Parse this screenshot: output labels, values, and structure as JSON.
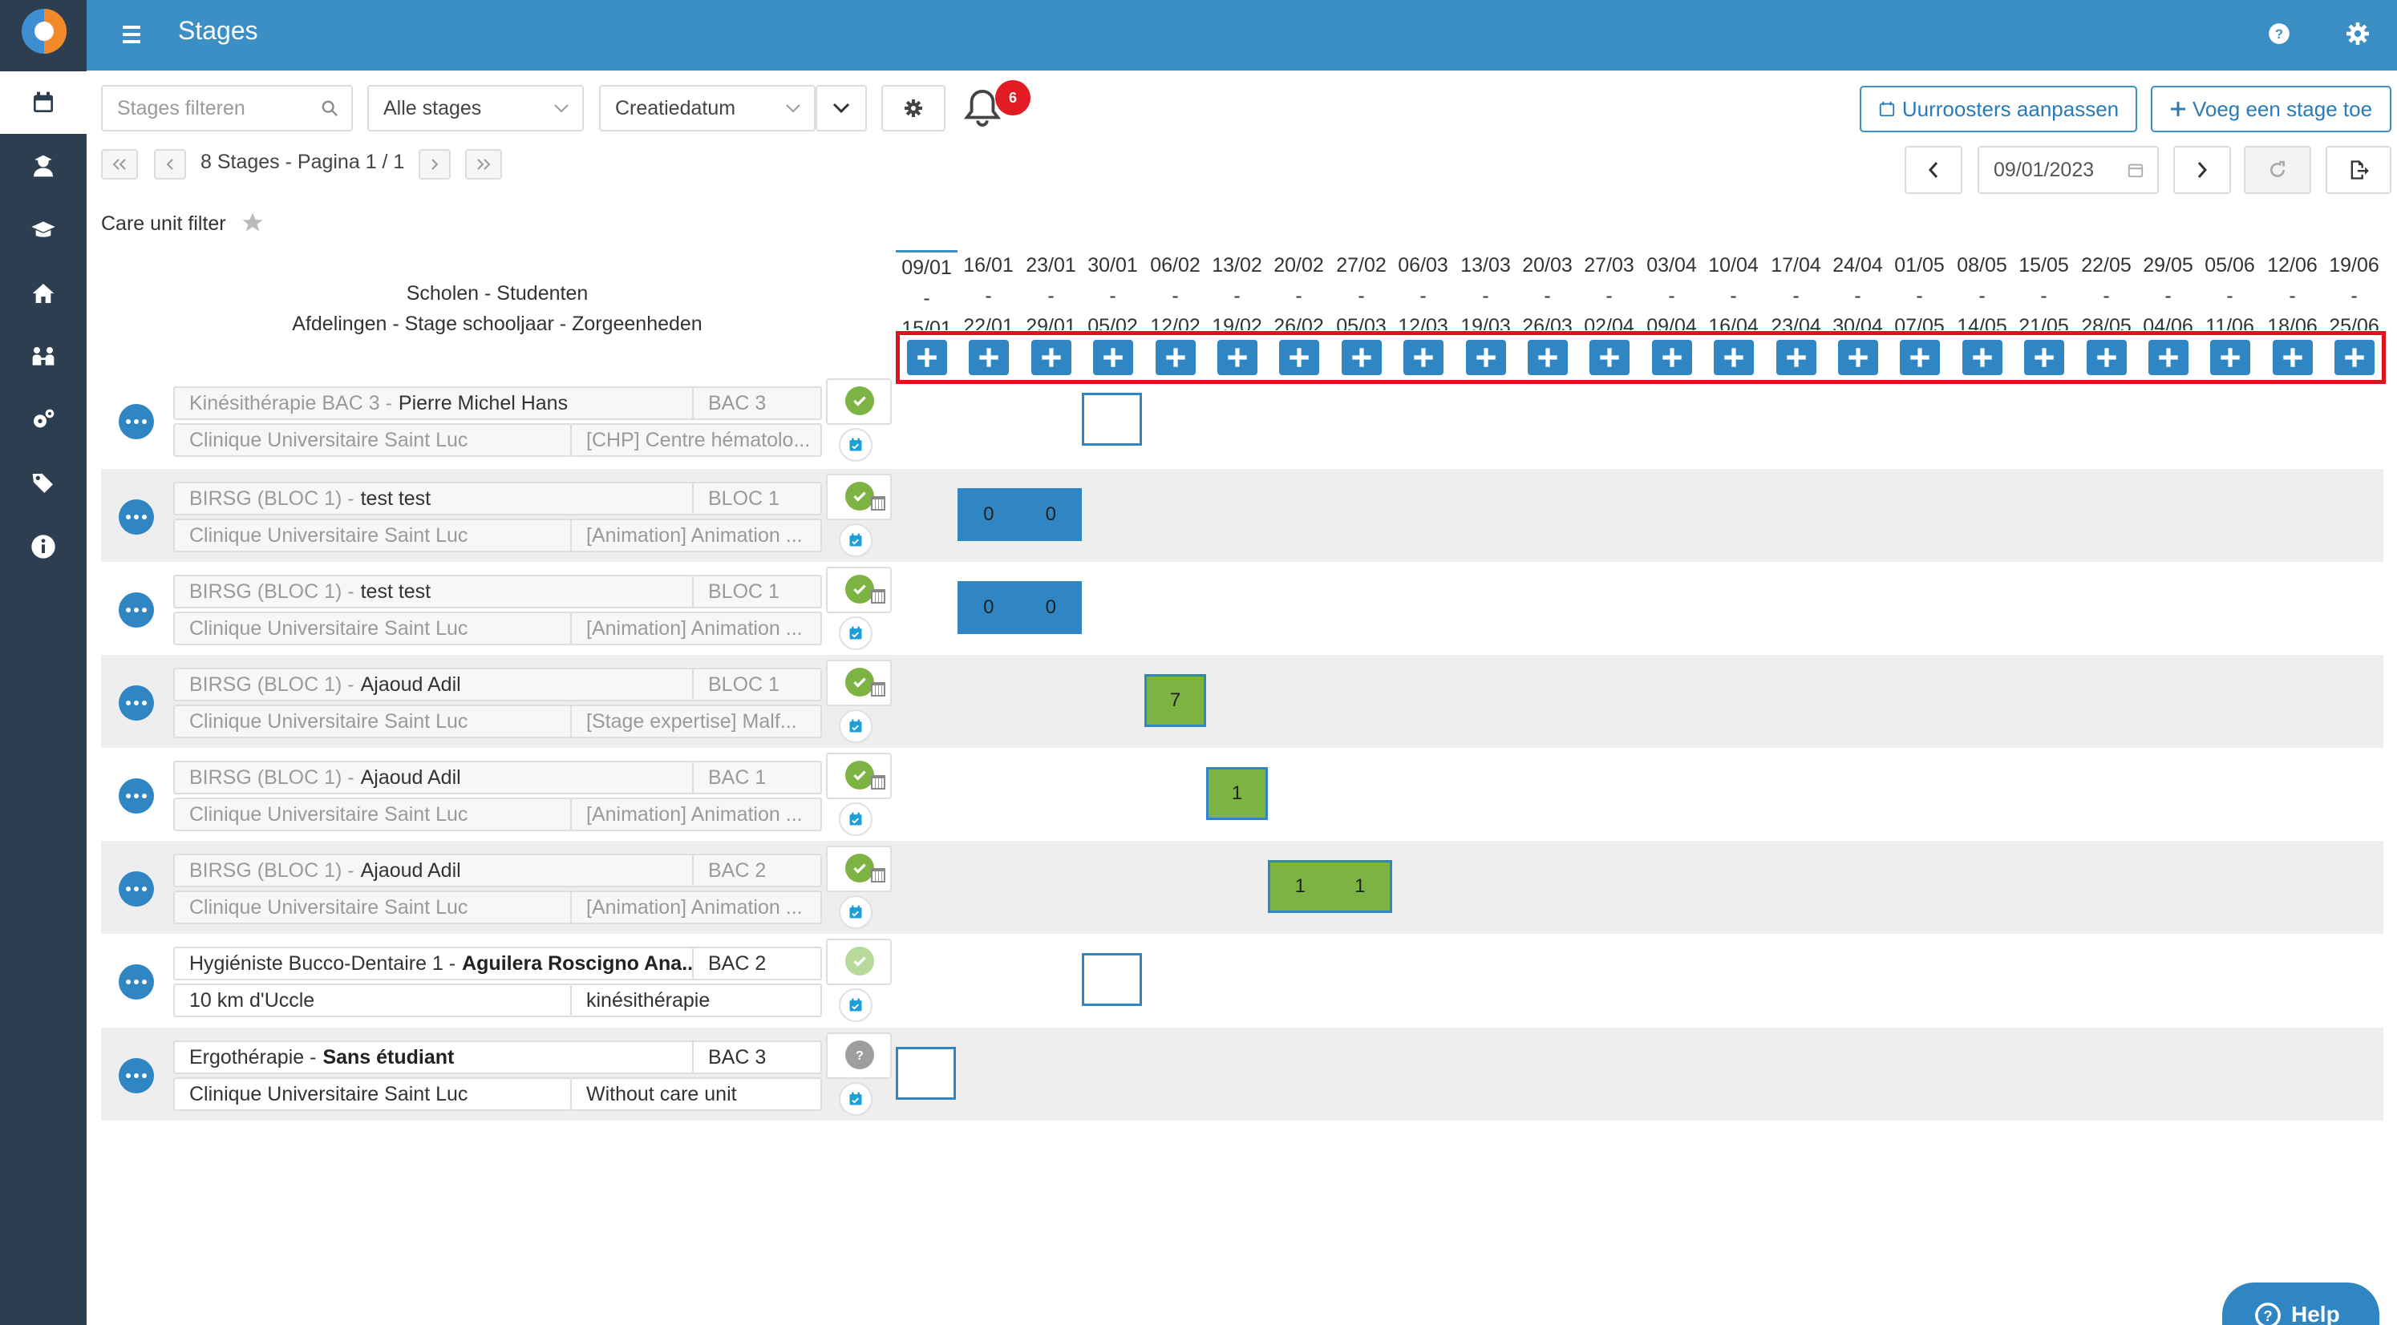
{
  "header": {
    "title": "Stages"
  },
  "toolbar": {
    "search_placeholder": "Stages filteren",
    "stage_filter": "Alle stages",
    "sort": "Creatiedatum",
    "notification_count": "6",
    "schedules_button": "Uurroosters aanpassen",
    "add_button": "Voeg een stage toe",
    "date_value": "09/01/2023"
  },
  "pager": {
    "text": "8 Stages - Pagina 1 / 1"
  },
  "care_filter_label": "Care unit filter",
  "column_headers": {
    "line1": "Scholen - Studenten",
    "line2": "Afdelingen - Stage schooljaar - Zorgeenheden"
  },
  "weeks": [
    {
      "start": "09/01",
      "end": "15/01"
    },
    {
      "start": "16/01",
      "end": "22/01"
    },
    {
      "start": "23/01",
      "end": "29/01"
    },
    {
      "start": "30/01",
      "end": "05/02"
    },
    {
      "start": "06/02",
      "end": "12/02"
    },
    {
      "start": "13/02",
      "end": "19/02"
    },
    {
      "start": "20/02",
      "end": "26/02"
    },
    {
      "start": "27/02",
      "end": "05/03"
    },
    {
      "start": "06/03",
      "end": "12/03"
    },
    {
      "start": "13/03",
      "end": "19/03"
    },
    {
      "start": "20/03",
      "end": "26/03"
    },
    {
      "start": "27/03",
      "end": "02/04"
    },
    {
      "start": "03/04",
      "end": "09/04"
    },
    {
      "start": "10/04",
      "end": "16/04"
    },
    {
      "start": "17/04",
      "end": "23/04"
    },
    {
      "start": "24/04",
      "end": "30/04"
    },
    {
      "start": "01/05",
      "end": "07/05"
    },
    {
      "start": "08/05",
      "end": "14/05"
    },
    {
      "start": "15/05",
      "end": "21/05"
    },
    {
      "start": "22/05",
      "end": "28/05"
    },
    {
      "start": "29/05",
      "end": "04/06"
    },
    {
      "start": "05/06",
      "end": "11/06"
    },
    {
      "start": "12/06",
      "end": "18/06"
    },
    {
      "start": "19/06",
      "end": "25/06"
    }
  ],
  "rows": [
    {
      "school": "Kinésithérapie BAC 3 -",
      "student": "Pierre Michel Hans",
      "level": "BAC 3",
      "institution": "Clinique Universitaire Saint Luc",
      "unit": "[CHP] Centre hématolo...",
      "status": "ok"
    },
    {
      "school": "BIRSG (BLOC 1) -",
      "student": "test test",
      "level": "BLOC 1",
      "institution": "Clinique Universitaire Saint Luc",
      "unit": "[Animation] Animation ...",
      "status": "ok",
      "cells": [
        "0",
        "0"
      ]
    },
    {
      "school": "BIRSG (BLOC 1) -",
      "student": "test test",
      "level": "BLOC 1",
      "institution": "Clinique Universitaire Saint Luc",
      "unit": "[Animation] Animation ...",
      "status": "ok",
      "cells": [
        "0",
        "0"
      ]
    },
    {
      "school": "BIRSG (BLOC 1) -",
      "student": "Ajaoud Adil",
      "level": "BLOC 1",
      "institution": "Clinique Universitaire Saint Luc",
      "unit": "[Stage expertise] Malf...",
      "status": "ok",
      "cells": [
        "7"
      ]
    },
    {
      "school": "BIRSG (BLOC 1) -",
      "student": "Ajaoud Adil",
      "level": "BAC 1",
      "institution": "Clinique Universitaire Saint Luc",
      "unit": "[Animation] Animation ...",
      "status": "ok",
      "cells": [
        "1"
      ]
    },
    {
      "school": "BIRSG (BLOC 1) -",
      "student": "Ajaoud Adil",
      "level": "BAC 2",
      "institution": "Clinique Universitaire Saint Luc",
      "unit": "[Animation] Animation ...",
      "status": "ok",
      "cells": [
        "1",
        "1"
      ]
    },
    {
      "school": "Hygiéniste Bucco-Dentaire 1 -",
      "student": "Aguilera Roscigno Ana...",
      "level": "BAC 2",
      "institution": "10 km d'Uccle",
      "unit": "kinésithérapie",
      "status": "light"
    },
    {
      "school": "Ergothérapie -",
      "student": "Sans étudiant",
      "level": "BAC 3",
      "institution": "Clinique Universitaire Saint Luc",
      "unit": "Without care unit",
      "status": "unknown"
    }
  ],
  "help_label": "Help",
  "colors": {
    "primary": "#3b8fc4",
    "sidebar": "#2c3e50",
    "green": "#7cb342",
    "highlight": "#e0121b"
  },
  "icons": [
    "calendar-icon",
    "student-icon",
    "graduation-cap-icon",
    "home-icon",
    "users-icon",
    "cogs-icon",
    "tags-icon",
    "info-icon"
  ]
}
